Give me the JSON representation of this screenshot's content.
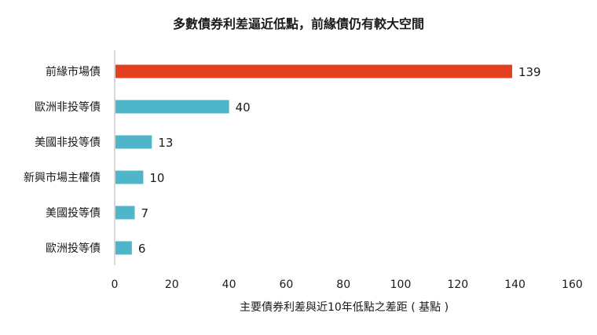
{
  "chart_data": {
    "type": "bar",
    "orientation": "horizontal",
    "title": "多數債券利差逼近低點，前緣債仍有較大空間",
    "xlabel": "主要債券利差與近10年低點之差距 ( 基點 )",
    "categories": [
      "前緣市場債",
      "歐洲非投等債",
      "美國非投等債",
      "新興市場主權債",
      "美國投等債",
      "歐洲投等債"
    ],
    "values": [
      139,
      40,
      13,
      10,
      7,
      6
    ],
    "value_labels": [
      "139",
      "40",
      "13",
      "10",
      "7",
      "6"
    ],
    "xlim": [
      0,
      160
    ],
    "xticks": [
      0,
      20,
      40,
      60,
      80,
      100,
      120,
      140,
      160
    ],
    "xtick_labels": [
      "0",
      "20",
      "40",
      "60",
      "80",
      "100",
      "120",
      "140",
      "160"
    ],
    "grid": false,
    "colors": {
      "highlight": "#e2401e",
      "default": "#4eb6c8",
      "axis": "#cccccc"
    }
  }
}
